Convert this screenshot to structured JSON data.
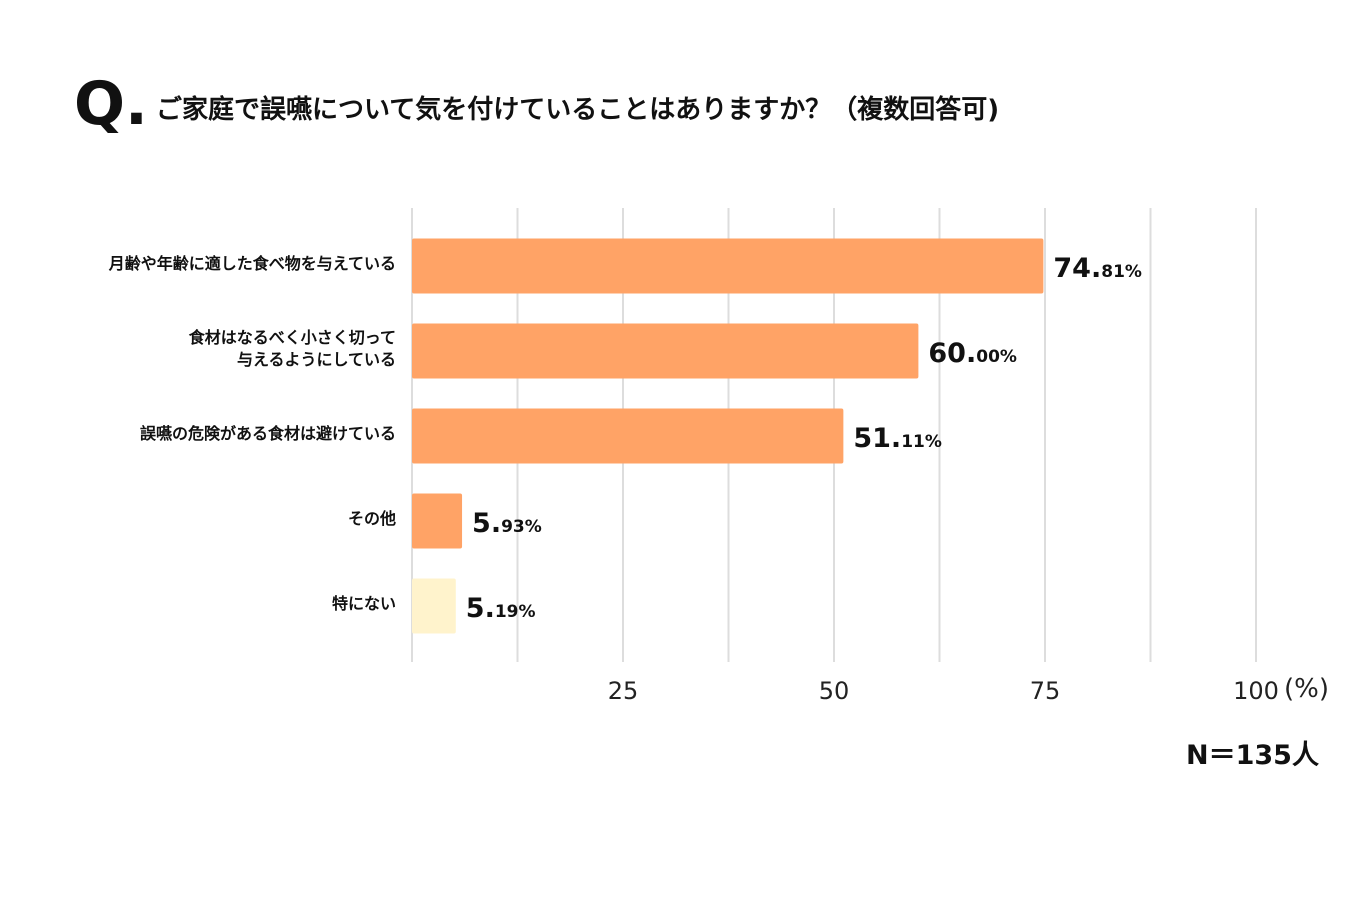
{
  "question": {
    "prefix": "Q.",
    "text": "ご家庭で誤嚥について気を付けていることはありますか？（複数回答可)"
  },
  "sample_size": "N＝135人",
  "chart_data": {
    "type": "bar",
    "orientation": "horizontal",
    "categories": [
      "月齢や年齢に適した食べ物を与えている",
      "食材はなるべく小さく切って\n与えるようにしている",
      "誤嚥の危険がある食材は避けている",
      "その他",
      "特にない"
    ],
    "values": [
      74.81,
      60.0,
      51.11,
      5.93,
      5.19
    ],
    "value_labels": [
      {
        "main": "74.",
        "sub": "81%"
      },
      {
        "main": "60.",
        "sub": "00%"
      },
      {
        "main": "51.",
        "sub": "11%"
      },
      {
        "main": "5.",
        "sub": "93%"
      },
      {
        "main": "5.",
        "sub": "19%"
      }
    ],
    "bar_colors": [
      "#ffa366",
      "#ffa366",
      "#ffa366",
      "#ffa366",
      "#fff3cc"
    ],
    "xlim": [
      0,
      100
    ],
    "x_ticks": [
      25,
      50,
      75,
      100
    ],
    "x_unit": "(%)",
    "grid": true
  }
}
